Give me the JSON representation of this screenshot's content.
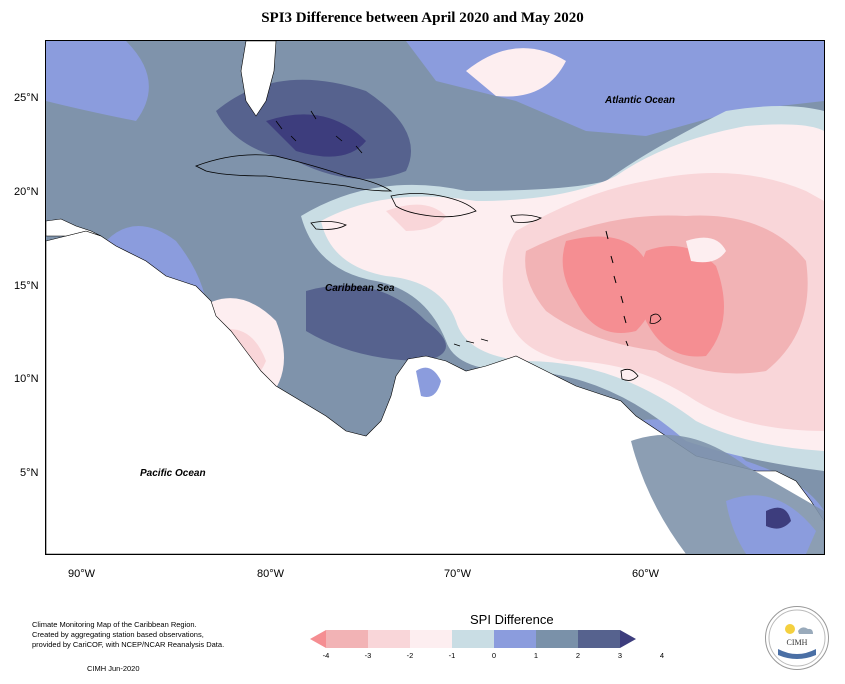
{
  "title": "SPI3 Difference between April 2020 and May 2020",
  "map": {
    "ocean_labels": {
      "atlantic": "Atlantic Ocean",
      "caribbean": "Caribbean Sea",
      "pacific": "Pacific Ocean"
    },
    "lat_ticks": [
      "25°N",
      "20°N",
      "15°N",
      "10°N",
      "5°N"
    ],
    "lon_ticks": [
      "90°W",
      "80°W",
      "70°W",
      "60°W"
    ]
  },
  "footer": {
    "lines": [
      "Climate Monitoring Map of the Caribbean Region.",
      "Created by aggregating station based observations,",
      "provided by CariCOF, with NCEP/NCAR Reanalysis Data."
    ],
    "credit": "CIMH  Jun-2020"
  },
  "legend": {
    "title": "SPI Difference",
    "ticks": [
      "-4",
      "-3",
      "-2",
      "-1",
      "0",
      "1",
      "2",
      "3",
      "4"
    ],
    "colors": [
      "#f58e92",
      "#f2b3b5",
      "#f9d6d9",
      "#fdeef0",
      "#c9dde4",
      "#8b9cdd",
      "#7a91a9",
      "#56628e",
      "#3d3d7d"
    ]
  },
  "logo": {
    "text": "CIMH",
    "sun_color": "#f4d03f"
  }
}
